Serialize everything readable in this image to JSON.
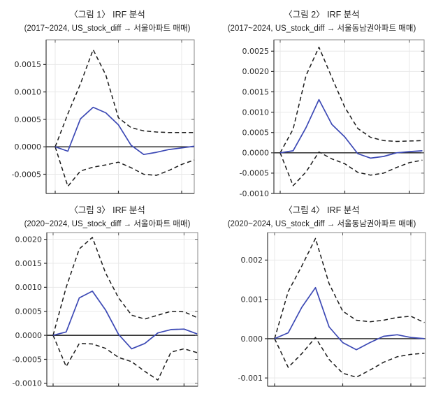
{
  "page": {
    "background": "#ffffff"
  },
  "colors": {
    "response_line": "#3c49b5",
    "band_line": "#1b1b1b",
    "zero_line": "#1a1a1a",
    "grid": "#e8e8e8"
  },
  "chart_data": [
    {
      "type": "line",
      "title": "〈그림 1〉 IRF 분석",
      "subtitle": "(2017~2024, US_stock_diff → 서울아파트 매매)",
      "x": [
        0,
        1,
        2,
        3,
        4,
        5,
        6,
        7,
        8,
        9,
        10,
        11
      ],
      "x_ticks": [
        0,
        5,
        10
      ],
      "xlabel": "",
      "ylabel": "",
      "ylim": [
        -0.00085,
        0.00195
      ],
      "y_ticks": [
        0.0015,
        0.001,
        0.0005,
        0.0,
        -0.0005
      ],
      "y_tick_labels": [
        "0.0015",
        "0.0010",
        "0.0005",
        "0.0000",
        "-0.0005"
      ],
      "grid": true,
      "zero_line": true,
      "legend": "none",
      "series": [
        {
          "name": "irf-response",
          "style": "solid",
          "color": "#3c49b5",
          "values": [
            0,
            -8e-05,
            0.00051,
            0.00072,
            0.00062,
            0.0004,
            3e-05,
            -0.00014,
            -0.0001,
            -5e-05,
            -2e-05,
            1e-05
          ]
        },
        {
          "name": "upper-band",
          "style": "dashed",
          "color": "#1b1b1b",
          "values": [
            0,
            0.0006,
            0.00115,
            0.00177,
            0.00131,
            0.00053,
            0.00035,
            0.00029,
            0.00027,
            0.00026,
            0.00026,
            0.00026
          ]
        },
        {
          "name": "lower-band",
          "style": "dashed",
          "color": "#1b1b1b",
          "values": [
            0,
            -0.00072,
            -0.00044,
            -0.00037,
            -0.00033,
            -0.00028,
            -0.00038,
            -0.0005,
            -0.00052,
            -0.00043,
            -0.00032,
            -0.00024
          ]
        }
      ]
    },
    {
      "type": "line",
      "title": "〈그림 2〉 IRF 분석",
      "subtitle": "(2017~2024, US_stock_diff → 서울동남권아파트 매매)",
      "x": [
        0,
        1,
        2,
        3,
        4,
        5,
        6,
        7,
        8,
        9,
        10,
        11
      ],
      "x_ticks": [
        0,
        5,
        10
      ],
      "xlabel": "",
      "ylabel": "",
      "ylim": [
        -0.001,
        0.00278
      ],
      "y_ticks": [
        0.0025,
        0.002,
        0.0015,
        0.001,
        0.0005,
        0.0,
        -0.0005,
        -0.001
      ],
      "y_tick_labels": [
        "0.0025",
        "0.0020",
        "0.0015",
        "0.0010",
        "0.0005",
        "0.0000",
        "-0.0005",
        "-0.0010"
      ],
      "grid": true,
      "zero_line": true,
      "legend": "none",
      "series": [
        {
          "name": "irf-response",
          "style": "solid",
          "color": "#3c49b5",
          "values": [
            0,
            5e-05,
            0.00062,
            0.00131,
            0.0007,
            0.00039,
            -2e-05,
            -0.00013,
            -9e-05,
            0.0,
            3e-05,
            5e-05
          ]
        },
        {
          "name": "upper-band",
          "style": "dashed",
          "color": "#1b1b1b",
          "values": [
            0,
            0.00058,
            0.0019,
            0.0026,
            0.00185,
            0.00112,
            0.0006,
            0.00038,
            0.0003,
            0.00028,
            0.00029,
            0.0003
          ]
        },
        {
          "name": "lower-band",
          "style": "dashed",
          "color": "#1b1b1b",
          "values": [
            0,
            -0.00081,
            -0.00047,
            2e-05,
            -0.00015,
            -0.00027,
            -0.00048,
            -0.00055,
            -0.0005,
            -0.00036,
            -0.00024,
            -0.00018
          ]
        }
      ]
    },
    {
      "type": "line",
      "title": "〈그림 3〉 IRF 분석",
      "subtitle": "(2020~2024, US_stock_diff → 서울아파트 매매)",
      "x": [
        0,
        1,
        2,
        3,
        4,
        5,
        6,
        7,
        8,
        9,
        10,
        11
      ],
      "x_ticks": [
        0,
        5,
        10
      ],
      "xlabel": "",
      "ylabel": "",
      "ylim": [
        -0.00106,
        0.00214
      ],
      "y_ticks": [
        0.002,
        0.0015,
        0.001,
        0.0005,
        0.0,
        -0.0005,
        -0.001
      ],
      "y_tick_labels": [
        "0.0020",
        "0.0015",
        "0.0010",
        "0.0005",
        "0.0000",
        "-0.0005",
        "-0.0010"
      ],
      "grid": true,
      "zero_line": true,
      "legend": "none",
      "series": [
        {
          "name": "irf-response",
          "style": "solid",
          "color": "#3c49b5",
          "values": [
            0,
            7e-05,
            0.00078,
            0.00092,
            0.00053,
            2e-05,
            -0.00028,
            -0.00017,
            5e-05,
            0.00012,
            0.00013,
            3e-05
          ]
        },
        {
          "name": "upper-band",
          "style": "dashed",
          "color": "#1b1b1b",
          "values": [
            0,
            0.001,
            0.0018,
            0.00204,
            0.0013,
            0.00078,
            0.00042,
            0.00034,
            0.00042,
            0.0005,
            0.00049,
            0.00037
          ]
        },
        {
          "name": "lower-band",
          "style": "dashed",
          "color": "#1b1b1b",
          "values": [
            0,
            -0.00065,
            -0.00017,
            -0.00018,
            -0.00027,
            -0.00046,
            -0.00055,
            -0.00075,
            -0.00093,
            -0.00035,
            -0.00028,
            -0.00036
          ]
        }
      ]
    },
    {
      "type": "line",
      "title": "〈그림 4〉 IRF 분석",
      "subtitle": "(2020~2024, US_stock_diff → 서울동남권아파트 매매)",
      "x": [
        0,
        1,
        2,
        3,
        4,
        5,
        6,
        7,
        8,
        9,
        10,
        11
      ],
      "x_ticks": [
        0,
        5,
        10
      ],
      "xlabel": "",
      "ylabel": "",
      "ylim": [
        -0.00121,
        0.0027
      ],
      "y_ticks": [
        0.002,
        0.001,
        0.0,
        -0.001
      ],
      "y_tick_labels": [
        "0.002",
        "0.001",
        "0.000",
        "-0.001"
      ],
      "grid": true,
      "zero_line": true,
      "legend": "none",
      "series": [
        {
          "name": "irf-response",
          "style": "solid",
          "color": "#3c49b5",
          "values": [
            0,
            0.00015,
            0.0008,
            0.0013,
            0.0003,
            -0.0001,
            -0.00028,
            -0.0001,
            6e-05,
            0.0001,
            3e-05,
            0.0
          ]
        },
        {
          "name": "upper-band",
          "style": "dashed",
          "color": "#1b1b1b",
          "values": [
            0,
            0.0012,
            0.00185,
            0.00255,
            0.0014,
            0.0007,
            0.00047,
            0.00043,
            0.00047,
            0.00054,
            0.00057,
            0.00041
          ]
        },
        {
          "name": "lower-band",
          "style": "dashed",
          "color": "#1b1b1b",
          "values": [
            0,
            -0.00073,
            -0.00038,
            3e-05,
            -0.00053,
            -0.00088,
            -0.00098,
            -0.0008,
            -0.0006,
            -0.00046,
            -0.0004,
            -0.00037
          ]
        }
      ]
    }
  ]
}
